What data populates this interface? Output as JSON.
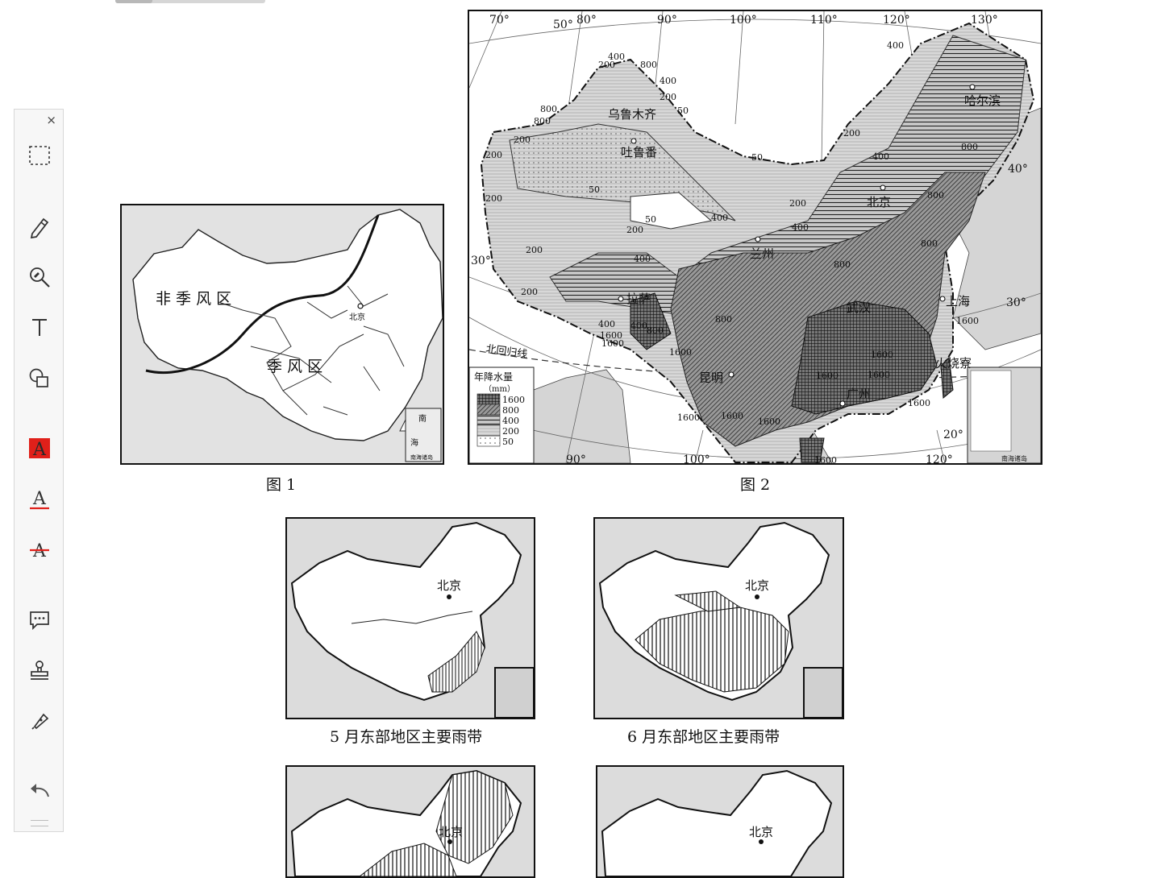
{
  "toolbar": {
    "close_glyph": "×",
    "tools": [
      {
        "name": "select-rect"
      },
      {
        "name": "pencil"
      },
      {
        "name": "zoom-annotate"
      },
      {
        "name": "text"
      },
      {
        "name": "shapes"
      },
      {
        "name": "highlight-text"
      },
      {
        "name": "underline-text"
      },
      {
        "name": "strikethrough-text"
      },
      {
        "name": "comment"
      },
      {
        "name": "stamp"
      },
      {
        "name": "signature"
      },
      {
        "name": "undo"
      }
    ],
    "accent": "#e0201a"
  },
  "fig1": {
    "label_nonmonsoon": "非 季 风 区",
    "label_monsoon": "季   风   区",
    "beijing": "北京",
    "inset_a": "南",
    "inset_b": "海",
    "inset_caption": "南海诸岛",
    "caption": "图 1"
  },
  "fig2": {
    "caption": "图 2",
    "lon_top": [
      "70°",
      "80°",
      "90°",
      "100°",
      "110°",
      "120°",
      "130°"
    ],
    "lon_top_extra": "50°",
    "lon_bottom": [
      "90°",
      "100°",
      "120°"
    ],
    "lat": [
      "40°",
      "30°",
      "30°",
      "20°"
    ],
    "tropic": "北回归线",
    "cities": [
      "乌鲁木齐",
      "吐鲁番",
      "哈尔滨",
      "北京",
      "兰州",
      "拉萨",
      "上海",
      "武汉",
      "昆明",
      "广州",
      "火烧寮"
    ],
    "legend_title": "年降水量",
    "legend_unit": "（mm）",
    "legend_values": [
      "1600",
      "800",
      "400",
      "200",
      "50"
    ],
    "isohyets": [
      "400",
      "200",
      "800",
      "400",
      "400",
      "200",
      "50",
      "800",
      "800",
      "200",
      "200",
      "50",
      "200",
      "50",
      "200",
      "50",
      "400",
      "200",
      "400",
      "400",
      "200",
      "400",
      "800",
      "800",
      "800",
      "400",
      "200",
      "200",
      "800",
      "400",
      "800",
      "1600",
      "1600",
      "1600",
      "800",
      "1600",
      "1600",
      "1600",
      "1600",
      "1600",
      "1600",
      "1600",
      "1600",
      "1600"
    ],
    "inset_caption": "南海诸岛"
  },
  "maps": [
    {
      "caption": "5 月东部地区主要雨带",
      "beijing": "北京"
    },
    {
      "caption": "6 月东部地区主要雨带",
      "beijing": "北京"
    },
    {
      "caption": "",
      "beijing": "北京"
    },
    {
      "caption": "",
      "beijing": "北京"
    }
  ]
}
